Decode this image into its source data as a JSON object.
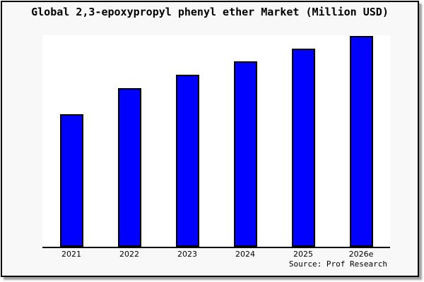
{
  "chart": {
    "title": "Global 2,3-epoxypropyl phenyl ether Market (Million USD)",
    "source": "Source: Prof Research",
    "colors": {
      "bar_fill": "#0000ff",
      "bar_border": "#000000",
      "plot_background": "#ffffff",
      "page_background": "#f8f8f8",
      "axis": "#000000",
      "frame_border": "#000000"
    }
  },
  "chart_data": {
    "type": "bar",
    "title": "Global 2,3-epoxypropyl phenyl ether Market (Million USD)",
    "categories": [
      "2021",
      "2022",
      "2023",
      "2024",
      "2025",
      "2026e"
    ],
    "values": [
      62.7,
      75.0,
      81.3,
      87.8,
      93.7,
      99.8
    ],
    "xlabel": "",
    "ylabel": "",
    "ylim": [
      0,
      100
    ],
    "grid": false,
    "legend": false,
    "y_axis_labeled": false,
    "annotations": [
      "Source: Prof Research"
    ]
  }
}
